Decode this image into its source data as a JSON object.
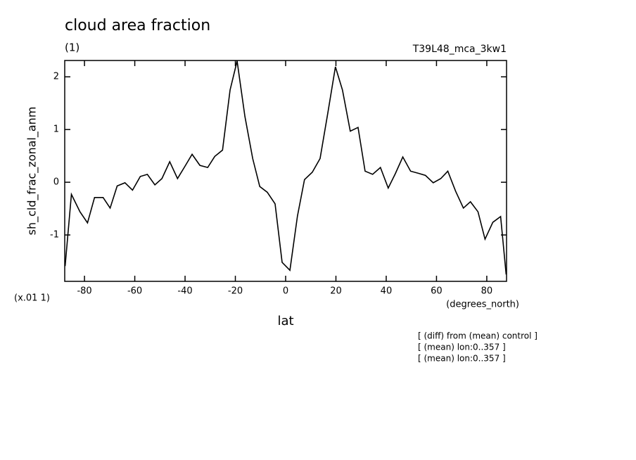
{
  "chart_data": {
    "type": "line",
    "title": "cloud area fraction",
    "subtitle": "(1)",
    "run_label": "T39L48_mca_3kw1",
    "ylabel": "sh_cld_frac_zonal_anm",
    "scale_label": "(x.01 1)",
    "xunits": "(degrees_north)",
    "xlabel": "lat",
    "notes": [
      "[ (diff) from (mean) control ]",
      "[ (mean) lon:0..357 ]",
      "[ (mean) lon:0..357 ]"
    ],
    "color": "#000000",
    "x": [
      -87.7,
      -85.2,
      -81.8,
      -78.8,
      -76.0,
      -72.6,
      -69.8,
      -67.0,
      -63.9,
      -60.9,
      -57.8,
      -55.0,
      -52.0,
      -49.2,
      -46.1,
      -43.0,
      -40.2,
      -37.2,
      -34.1,
      -31.0,
      -28.2,
      -25.1,
      -22.1,
      -19.3,
      -16.2,
      -13.1,
      -10.3,
      -7.3,
      -4.2,
      -1.4,
      1.7,
      4.7,
      7.5,
      10.6,
      13.7,
      16.8,
      19.8,
      22.6,
      25.7,
      28.8,
      31.6,
      34.6,
      37.7,
      40.8,
      43.6,
      46.6,
      49.7,
      52.8,
      55.6,
      58.7,
      61.7,
      64.5,
      67.6,
      70.7,
      73.5,
      76.5,
      79.3,
      82.4,
      85.5,
      87.7
    ],
    "values": [
      -1.59,
      -0.23,
      -0.56,
      -0.77,
      -0.29,
      -0.29,
      -0.49,
      -0.07,
      -0.01,
      -0.15,
      0.11,
      0.15,
      -0.05,
      0.07,
      0.39,
      0.07,
      0.29,
      0.53,
      0.32,
      0.28,
      0.49,
      0.61,
      1.75,
      2.3,
      1.25,
      0.45,
      -0.08,
      -0.19,
      -0.41,
      -1.52,
      -1.67,
      -0.64,
      0.05,
      0.19,
      0.45,
      1.32,
      2.19,
      1.75,
      0.97,
      1.04,
      0.21,
      0.15,
      0.28,
      -0.11,
      0.16,
      0.48,
      0.21,
      0.17,
      0.13,
      -0.01,
      0.07,
      0.21,
      -0.17,
      -0.49,
      -0.37,
      -0.56,
      -1.08,
      -0.76,
      -0.65,
      -1.75
    ],
    "xlim": [
      -87.86,
      87.86
    ],
    "ylim": [
      -1.88,
      2.31
    ],
    "xticks": [
      -80,
      -60,
      -40,
      -20,
      0,
      20,
      40,
      60,
      80
    ],
    "yticks": [
      -1,
      0,
      1,
      2
    ]
  }
}
